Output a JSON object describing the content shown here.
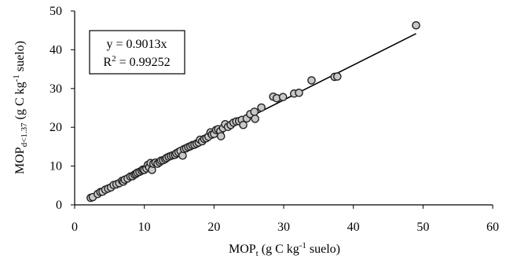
{
  "chart_data": {
    "type": "scatter",
    "xlim": [
      0,
      60
    ],
    "ylim": [
      0,
      50
    ],
    "x_ticks": [
      "0",
      "10",
      "20",
      "30",
      "40",
      "50",
      "60"
    ],
    "y_ticks": [
      "0",
      "10",
      "20",
      "30",
      "40",
      "50"
    ],
    "xlabel": {
      "main": "MOP",
      "sub": "t",
      "pre": " (g C kg",
      "sup": "-1",
      "post": " suelo)"
    },
    "ylabel": {
      "main": "MOP",
      "sub": "d<1.37",
      "pre": " (g C kg",
      "sup": "-1",
      "post": " suelo)"
    },
    "annotation": {
      "line1": "y = 0.9013x",
      "line2_prefix": "R",
      "line2_sup": "2",
      "line2_rest": " = 0.99252"
    },
    "trendline": {
      "slope": 0.9013,
      "x_range": [
        2.3,
        49
      ],
      "color": "#000000"
    },
    "grid": false,
    "marker": {
      "shape": "circle",
      "fill": "#c8c8c8",
      "stroke": "#222222"
    },
    "points": [
      [
        2.3,
        1.8
      ],
      [
        2.6,
        2.0
      ],
      [
        3.3,
        2.8
      ],
      [
        3.7,
        3.3
      ],
      [
        4.0,
        3.4
      ],
      [
        4.4,
        3.9
      ],
      [
        4.8,
        4.2
      ],
      [
        5.2,
        4.5
      ],
      [
        5.6,
        5.1
      ],
      [
        6.0,
        5.3
      ],
      [
        6.4,
        5.6
      ],
      [
        6.8,
        6.2
      ],
      [
        7.0,
        6.0
      ],
      [
        7.2,
        6.5
      ],
      [
        7.6,
        6.8
      ],
      [
        8.0,
        7.3
      ],
      [
        8.3,
        7.4
      ],
      [
        8.6,
        7.8
      ],
      [
        8.8,
        8.0
      ],
      [
        9.0,
        8.3
      ],
      [
        9.3,
        8.5
      ],
      [
        9.6,
        8.8
      ],
      [
        9.8,
        9.1
      ],
      [
        10.0,
        9.0
      ],
      [
        10.3,
        9.4
      ],
      [
        10.5,
        10.3
      ],
      [
        10.7,
        9.7
      ],
      [
        10.9,
        10.8
      ],
      [
        11.1,
        9.0
      ],
      [
        11.3,
        10.6
      ],
      [
        11.6,
        10.9
      ],
      [
        11.9,
        10.6
      ],
      [
        12.2,
        11.0
      ],
      [
        12.4,
        11.4
      ],
      [
        12.7,
        11.5
      ],
      [
        13.0,
        11.8
      ],
      [
        13.2,
        12.1
      ],
      [
        13.5,
        12.4
      ],
      [
        13.8,
        12.6
      ],
      [
        14.1,
        12.8
      ],
      [
        14.4,
        12.9
      ],
      [
        14.6,
        13.3
      ],
      [
        14.9,
        13.6
      ],
      [
        15.2,
        13.9
      ],
      [
        15.5,
        12.7
      ],
      [
        15.7,
        14.4
      ],
      [
        16.0,
        14.6
      ],
      [
        16.3,
        14.9
      ],
      [
        16.6,
        15.1
      ],
      [
        16.9,
        15.4
      ],
      [
        17.2,
        15.5
      ],
      [
        17.5,
        15.8
      ],
      [
        17.8,
        16.1
      ],
      [
        18.0,
        16.8
      ],
      [
        18.3,
        16.4
      ],
      [
        18.6,
        17.0
      ],
      [
        18.9,
        17.2
      ],
      [
        19.2,
        17.6
      ],
      [
        19.5,
        18.7
      ],
      [
        19.7,
        18.1
      ],
      [
        20.0,
        18.3
      ],
      [
        20.3,
        19.3
      ],
      [
        20.6,
        19.5
      ],
      [
        20.9,
        19.0
      ],
      [
        21.0,
        17.7
      ],
      [
        21.3,
        19.8
      ],
      [
        21.6,
        20.8
      ],
      [
        22.0,
        20.1
      ],
      [
        22.4,
        20.6
      ],
      [
        22.8,
        21.2
      ],
      [
        23.2,
        21.5
      ],
      [
        23.6,
        21.6
      ],
      [
        24.0,
        21.9
      ],
      [
        24.2,
        20.6
      ],
      [
        24.7,
        22.3
      ],
      [
        25.2,
        23.4
      ],
      [
        25.8,
        24.0
      ],
      [
        25.9,
        22.2
      ],
      [
        26.8,
        25.1
      ],
      [
        28.5,
        27.9
      ],
      [
        29.0,
        27.5
      ],
      [
        29.9,
        27.8
      ],
      [
        31.5,
        28.7
      ],
      [
        32.2,
        28.9
      ],
      [
        34.0,
        32.1
      ],
      [
        37.3,
        33.0
      ],
      [
        37.7,
        33.1
      ],
      [
        49.0,
        46.3
      ]
    ]
  }
}
